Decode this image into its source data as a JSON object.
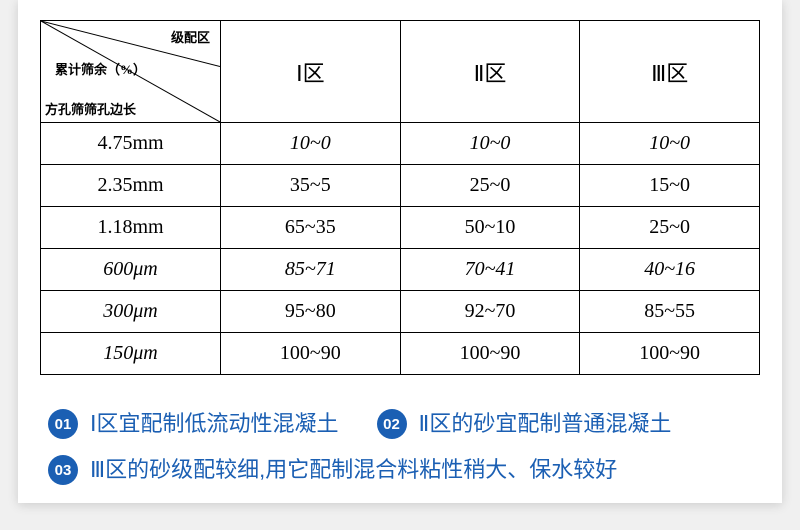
{
  "table": {
    "diag": {
      "top_label": "级配区",
      "mid_label": "累计筛余（%）",
      "bottom_label": "方孔筛筛孔边长"
    },
    "zones": [
      "Ⅰ区",
      "Ⅱ区",
      "Ⅲ区"
    ],
    "rows": [
      {
        "size": "4.75mm",
        "italic_size": false,
        "vals": [
          "10~0",
          "10~0",
          "10~0"
        ],
        "italic_vals": true
      },
      {
        "size": "2.35mm",
        "italic_size": false,
        "vals": [
          "35~5",
          "25~0",
          "15~0"
        ],
        "italic_vals": false
      },
      {
        "size": "1.18mm",
        "italic_size": false,
        "vals": [
          "65~35",
          "50~10",
          "25~0"
        ],
        "italic_vals": false
      },
      {
        "size": "600μm",
        "italic_size": true,
        "vals": [
          "85~71",
          "70~41",
          "40~16"
        ],
        "italic_vals": true
      },
      {
        "size": "300μm",
        "italic_size": true,
        "vals": [
          "95~80",
          "92~70",
          "85~55"
        ],
        "italic_vals": false
      },
      {
        "size": "150μm",
        "italic_size": true,
        "vals": [
          "100~90",
          "100~90",
          "100~90"
        ],
        "italic_vals": false
      }
    ]
  },
  "notes": [
    {
      "num": "01",
      "text": "Ⅰ区宜配制低流动性混凝土"
    },
    {
      "num": "02",
      "text": "Ⅱ区的砂宜配制普通混凝土"
    },
    {
      "num": "03",
      "text": "Ⅲ区的砂级配较细,用它配制混合料粘性稍大、保水较好"
    }
  ],
  "colors": {
    "accent": "#1b5fb3",
    "border": "#000000",
    "card_bg": "#ffffff",
    "page_bg": "#f0f0f0"
  }
}
